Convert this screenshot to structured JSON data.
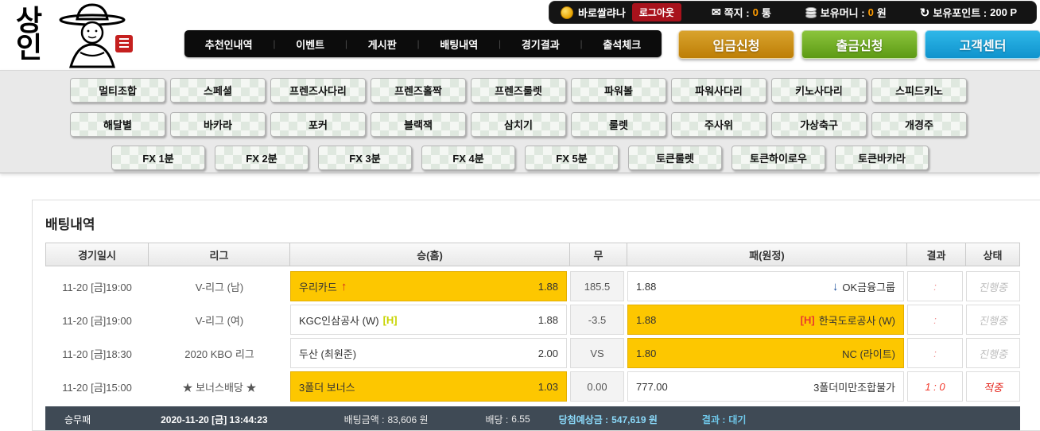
{
  "topbar": {
    "username": "바로쌀랴나",
    "logout_label": "로그아웃",
    "message_label": "쪽지 :",
    "message_count": "0",
    "message_unit": "통",
    "money_label": "보유머니 :",
    "money_value": "0",
    "money_unit": "원",
    "point_label": "보유포인트 :",
    "point_value": "200 P"
  },
  "logo": {
    "char1": "상",
    "char2": "인"
  },
  "nav": {
    "items": [
      "추천인내역",
      "이벤트",
      "게시판",
      "배팅내역",
      "경기결과",
      "출석체크"
    ]
  },
  "actions": {
    "deposit": "입금신청",
    "withdraw": "출금신청",
    "support": "고객센터"
  },
  "games": {
    "row1": [
      "멀티조합",
      "스페셜",
      "프렌즈사다리",
      "프렌즈홀짝",
      "프렌즈룰렛",
      "파워볼",
      "파워사다리",
      "키노사다리",
      "스피드키노"
    ],
    "row2": [
      "해달별",
      "바카라",
      "포커",
      "블랙잭",
      "삼치기",
      "룰렛",
      "주사위",
      "가상축구",
      "개경주"
    ],
    "row3": [
      "FX 1분",
      "FX 2분",
      "FX 3분",
      "FX 4분",
      "FX 5분",
      "토큰룰렛",
      "토큰하이로우",
      "토큰바카라"
    ]
  },
  "betting": {
    "title": "배팅내역",
    "columns": [
      "경기일시",
      "리그",
      "승(홈)",
      "무",
      "패(원정)",
      "결과",
      "상태"
    ],
    "colors": {
      "selected_bg": "#fdc700",
      "arrow_up": "#d42a20",
      "arrow_down": "#1b4f9c",
      "status_ongoing": "#bdbdbd",
      "status_hit": "#e4261d",
      "result_ongoing": "#f09090",
      "result_hit": "#f23b2e"
    },
    "rows": [
      {
        "datetime": "11-20 [금]19:00",
        "league": "V-리그 (남)",
        "home": {
          "team": "우리카드",
          "odds": "1.88",
          "selected": true,
          "arrow": "up"
        },
        "draw": "185.5",
        "away": {
          "team": "OK금융그룹",
          "odds": "1.88",
          "selected": false,
          "arrow": "down"
        },
        "result": ":",
        "status": "진행중",
        "state": "ongoing"
      },
      {
        "datetime": "11-20 [금]19:00",
        "league": "V-리그 (여)",
        "home": {
          "team": "KGC인삼공사 (W)",
          "odds": "1.88",
          "selected": false,
          "marker": {
            "text": "[H]",
            "color": "#c8d400"
          }
        },
        "draw": "-3.5",
        "away": {
          "team": "한국도로공사 (W)",
          "odds": "1.88",
          "selected": true,
          "marker": {
            "text": "[H]",
            "color": "#e83a2e"
          }
        },
        "result": ":",
        "status": "진행중",
        "state": "ongoing"
      },
      {
        "datetime": "11-20 [금]18:30",
        "league": "2020 KBO 리그",
        "home": {
          "team": "두산 (최원준)",
          "odds": "2.00",
          "selected": false
        },
        "draw": "VS",
        "away": {
          "team": "NC (라이트)",
          "odds": "1.80",
          "selected": true
        },
        "result": ":",
        "status": "진행중",
        "state": "ongoing"
      },
      {
        "datetime": "11-20 [금]15:00",
        "league": "★ 보너스배당 ★",
        "home": {
          "team": "3폴더 보너스",
          "odds": "1.03",
          "selected": true
        },
        "draw": "0.00",
        "away": {
          "team": "3폴더미만조합불가",
          "odds": "777.00",
          "selected": false
        },
        "result": "1 : 0",
        "status": "적중",
        "state": "hit"
      }
    ],
    "summary": {
      "bet_type": "승무패",
      "datetime": "2020-11-20 [금] 13:44:23",
      "stake_label": "배팅금액 :",
      "stake_value": "83,606 원",
      "odds_label": "배당 :",
      "odds_value": "6.55",
      "expected_label": "당첨예상금 :",
      "expected_value": "547,619 원",
      "result_label": "결과 :",
      "result_value": "대기"
    }
  }
}
